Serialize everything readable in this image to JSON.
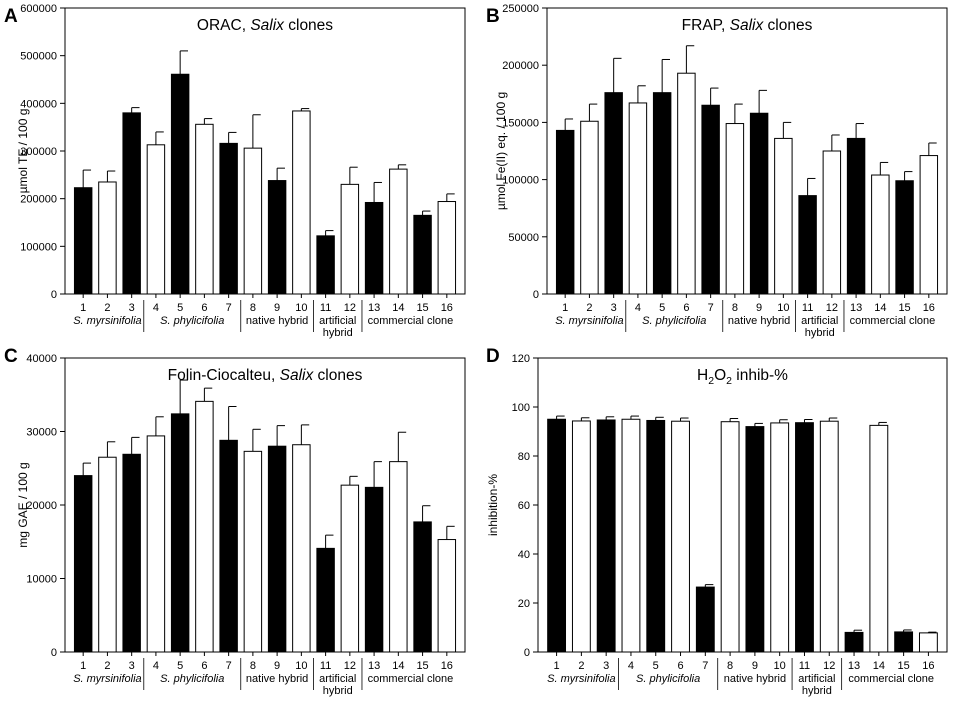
{
  "figure": {
    "group_labels": [
      "S. myrsinifolia",
      "S. phylicifolia",
      "native hybrid",
      "artificial",
      "hybrid",
      "commercial clone"
    ],
    "bar_colors": [
      "#000000",
      "#ffffff",
      "#000000",
      "#ffffff",
      "#000000",
      "#ffffff",
      "#000000",
      "#ffffff",
      "#000000",
      "#ffffff",
      "#000000",
      "#ffffff",
      "#000000",
      "#ffffff",
      "#000000",
      "#ffffff"
    ]
  },
  "chart_data": [
    {
      "panel": "A",
      "type": "bar",
      "title_parts": [
        "ORAC, ",
        "Salix",
        " clones"
      ],
      "ylabel": "µmol TE / 100 g",
      "categories": [
        "1",
        "2",
        "3",
        "4",
        "5",
        "6",
        "7",
        "8",
        "9",
        "10",
        "11",
        "12",
        "13",
        "14",
        "15",
        "16"
      ],
      "yticks": [
        "0",
        "100000",
        "200000",
        "300000",
        "400000",
        "500000",
        "600000"
      ],
      "ylim": [
        0,
        600000
      ],
      "values": [
        223000,
        235000,
        380000,
        313000,
        461000,
        356000,
        316000,
        306000,
        238000,
        384000,
        122000,
        230000,
        192000,
        262000,
        165000,
        194000
      ],
      "errors": [
        37000,
        23000,
        11000,
        27000,
        49000,
        12000,
        23000,
        70000,
        26000,
        5000,
        11000,
        36000,
        42000,
        9000,
        9000,
        16000
      ]
    },
    {
      "panel": "B",
      "type": "bar",
      "title_parts": [
        "FRAP, ",
        "Salix",
        " clones"
      ],
      "ylabel": "µmol Fe(II) eq. / 100 g",
      "categories": [
        "1",
        "2",
        "3",
        "4",
        "5",
        "6",
        "7",
        "8",
        "9",
        "10",
        "11",
        "12",
        "13",
        "14",
        "15",
        "16"
      ],
      "yticks": [
        "0",
        "50000",
        "100000",
        "150000",
        "200000",
        "250000"
      ],
      "ylim": [
        0,
        250000
      ],
      "values": [
        143000,
        151000,
        176000,
        167000,
        176000,
        193000,
        165000,
        149000,
        158000,
        136000,
        86000,
        125000,
        136000,
        104000,
        99000,
        121000
      ],
      "errors": [
        10000,
        15000,
        30000,
        15000,
        29000,
        24000,
        15000,
        17000,
        20000,
        14000,
        15000,
        14000,
        13000,
        11000,
        8000,
        11000
      ]
    },
    {
      "panel": "C",
      "type": "bar",
      "title_parts": [
        "Folin-Ciocalteu, ",
        "Salix",
        " clones"
      ],
      "ylabel": "mg GAE / 100 g",
      "categories": [
        "1",
        "2",
        "3",
        "4",
        "5",
        "6",
        "7",
        "8",
        "9",
        "10",
        "11",
        "12",
        "13",
        "14",
        "15",
        "16"
      ],
      "yticks": [
        "0",
        "10000",
        "20000",
        "30000",
        "40000"
      ],
      "ylim": [
        0,
        40000
      ],
      "values": [
        24000,
        26500,
        26900,
        29400,
        32400,
        34100,
        28800,
        27300,
        28000,
        28200,
        14100,
        22700,
        22400,
        25900,
        17700,
        15300
      ],
      "errors": [
        1700,
        2100,
        2300,
        2600,
        4600,
        1800,
        4600,
        3000,
        2800,
        2700,
        1800,
        1200,
        3500,
        4000,
        2200,
        1800
      ]
    },
    {
      "panel": "D",
      "type": "bar",
      "title_parts": [
        "H",
        "2",
        "O",
        "2",
        " inhib-%"
      ],
      "ylabel": "inhibition-%",
      "categories": [
        "1",
        "2",
        "3",
        "4",
        "5",
        "6",
        "7",
        "8",
        "9",
        "10",
        "11",
        "12",
        "13",
        "14",
        "15",
        "16"
      ],
      "yticks": [
        "0",
        "20",
        "40",
        "60",
        "80",
        "100",
        "120"
      ],
      "ylim": [
        0,
        120
      ],
      "values": [
        95,
        94.3,
        94.7,
        95,
        94.5,
        94.2,
        26.5,
        94,
        92,
        93.5,
        93.6,
        94.2,
        8,
        92.5,
        8.2,
        7.8
      ],
      "errors": [
        1.3,
        1.3,
        1.3,
        1.3,
        1.3,
        1.3,
        1.0,
        1.3,
        1.3,
        1.3,
        1.3,
        1.3,
        0.9,
        1.2,
        0.8,
        0.3
      ]
    }
  ]
}
